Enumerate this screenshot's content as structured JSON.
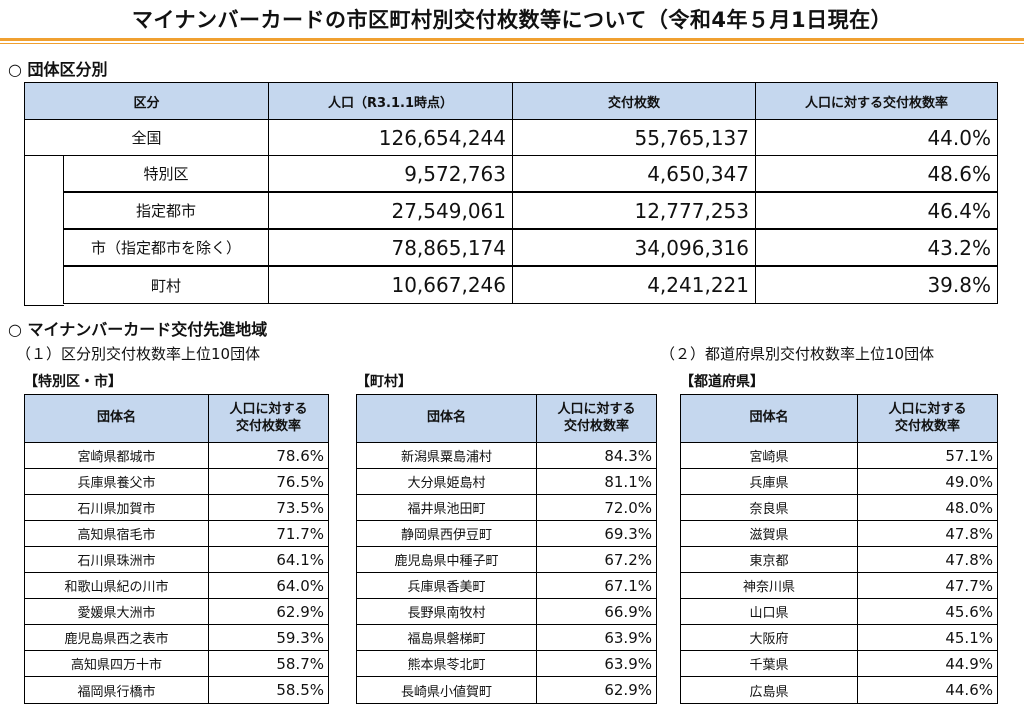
{
  "title": "マイナンバーカードの市区町村別交付枚数等について（令和4年５月1日現在）",
  "section1": {
    "heading": "○ 団体区分別"
  },
  "summary": {
    "headers": [
      "区分",
      "人口（R3.1.1時点）",
      "交付枚数",
      "人口に対する交付枚数率"
    ],
    "rows": [
      {
        "label": "全国",
        "population": "126,654,244",
        "issued": "55,765,137",
        "rate": "44.0%"
      },
      {
        "label": "特別区",
        "population": "9,572,763",
        "issued": "4,650,347",
        "rate": "48.6%"
      },
      {
        "label": "指定都市",
        "population": "27,549,061",
        "issued": "12,777,253",
        "rate": "46.4%"
      },
      {
        "label": "市（指定都市を除く）",
        "population": "78,865,174",
        "issued": "34,096,316",
        "rate": "43.2%"
      },
      {
        "label": "町村",
        "population": "10,667,246",
        "issued": "4,241,221",
        "rate": "39.8%"
      }
    ]
  },
  "section2": {
    "heading": "○ マイナンバーカード交付先進地域",
    "sub1": "（１）区分別交付枚数率上位10団体",
    "sub2": "（２）都道府県別交付枚数率上位10団体"
  },
  "table_city": {
    "caption": "【特別区・市】",
    "header_name": "団体名",
    "header_rate_1": "人口に対する",
    "header_rate_2": "交付枚数率",
    "rows": [
      {
        "name": "宮崎県都城市",
        "rate": "78.6%"
      },
      {
        "name": "兵庫県養父市",
        "rate": "76.5%"
      },
      {
        "name": "石川県加賀市",
        "rate": "73.5%"
      },
      {
        "name": "高知県宿毛市",
        "rate": "71.7%"
      },
      {
        "name": "石川県珠洲市",
        "rate": "64.1%"
      },
      {
        "name": "和歌山県紀の川市",
        "rate": "64.0%"
      },
      {
        "name": "愛媛県大洲市",
        "rate": "62.9%"
      },
      {
        "name": "鹿児島県西之表市",
        "rate": "59.3%"
      },
      {
        "name": "高知県四万十市",
        "rate": "58.7%"
      },
      {
        "name": "福岡県行橋市",
        "rate": "58.5%"
      }
    ]
  },
  "table_town": {
    "caption": "【町村】",
    "header_name": "団体名",
    "header_rate_1": "人口に対する",
    "header_rate_2": "交付枚数率",
    "rows": [
      {
        "name": "新潟県粟島浦村",
        "rate": "84.3%"
      },
      {
        "name": "大分県姫島村",
        "rate": "81.1%"
      },
      {
        "name": "福井県池田町",
        "rate": "72.0%"
      },
      {
        "name": "静岡県西伊豆町",
        "rate": "69.3%"
      },
      {
        "name": "鹿児島県中種子町",
        "rate": "67.2%"
      },
      {
        "name": "兵庫県香美町",
        "rate": "67.1%"
      },
      {
        "name": "長野県南牧村",
        "rate": "66.9%"
      },
      {
        "name": "福島県磐梯町",
        "rate": "63.9%"
      },
      {
        "name": "熊本県苓北町",
        "rate": "63.9%"
      },
      {
        "name": "長崎県小値賀町",
        "rate": "62.9%"
      }
    ]
  },
  "table_pref": {
    "caption": "【都道府県】",
    "header_name": "団体名",
    "header_rate_1": "人口に対する",
    "header_rate_2": "交付枚数率",
    "rows": [
      {
        "name": "宮崎県",
        "rate": "57.1%"
      },
      {
        "name": "兵庫県",
        "rate": "49.0%"
      },
      {
        "name": "奈良県",
        "rate": "48.0%"
      },
      {
        "name": "滋賀県",
        "rate": "47.8%"
      },
      {
        "name": "東京都",
        "rate": "47.8%"
      },
      {
        "name": "神奈川県",
        "rate": "47.7%"
      },
      {
        "name": "山口県",
        "rate": "45.6%"
      },
      {
        "name": "大阪府",
        "rate": "45.1%"
      },
      {
        "name": "千葉県",
        "rate": "44.9%"
      },
      {
        "name": "広島県",
        "rate": "44.6%"
      }
    ]
  },
  "colors": {
    "accent_rule": "#f0a030",
    "header_fill": "#c5d7ee"
  }
}
